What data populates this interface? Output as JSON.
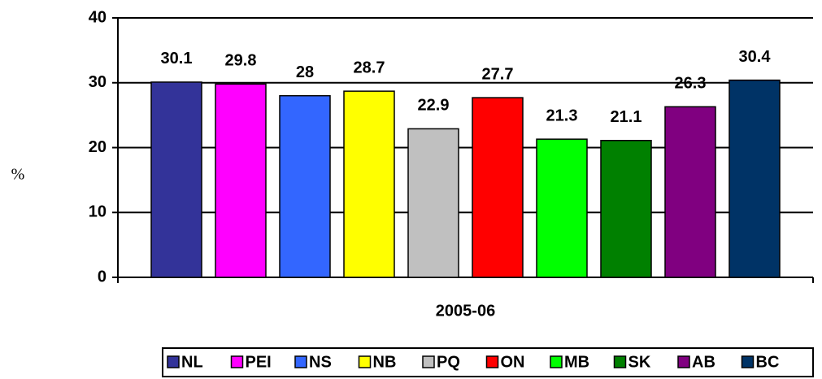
{
  "chart_data": {
    "type": "bar",
    "y_label": "%",
    "categories": [
      "2005-06"
    ],
    "series": [
      {
        "name": "NL",
        "color": "#333399",
        "values": [
          30.1
        ]
      },
      {
        "name": "PEI",
        "color": "#ff00ff",
        "values": [
          29.8
        ]
      },
      {
        "name": "NS",
        "color": "#3366ff",
        "values": [
          28
        ]
      },
      {
        "name": "NB",
        "color": "#ffff00",
        "values": [
          28.7
        ]
      },
      {
        "name": "PQ",
        "color": "#c0c0c0",
        "values": [
          22.9
        ]
      },
      {
        "name": "ON",
        "color": "#ff0000",
        "values": [
          27.7
        ]
      },
      {
        "name": "MB",
        "color": "#00ff00",
        "values": [
          21.3
        ]
      },
      {
        "name": "SK",
        "color": "#008000",
        "values": [
          21.1
        ]
      },
      {
        "name": "AB",
        "color": "#800080",
        "values": [
          26.3
        ]
      },
      {
        "name": "BC",
        "color": "#003366",
        "values": [
          30.4
        ]
      }
    ],
    "ylim": [
      0,
      40
    ],
    "yticks": [
      0,
      10,
      20,
      30,
      40
    ],
    "grid": true,
    "legend": "bottom"
  }
}
